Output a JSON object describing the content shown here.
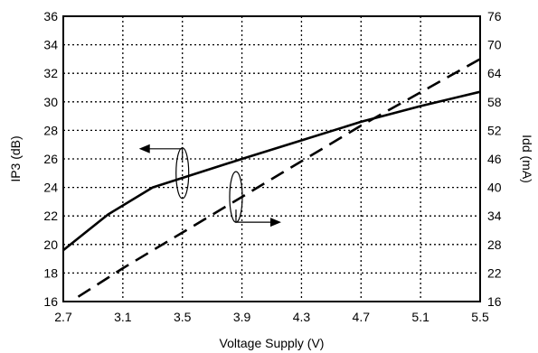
{
  "chart_data": {
    "type": "line",
    "xlabel": "Voltage Supply (V)",
    "ylabel_left": "IP3 (dB)",
    "ylabel_right": "Idd (mA)",
    "xlim": [
      2.7,
      5.5
    ],
    "ylim_left": [
      16,
      36
    ],
    "ylim_right": [
      16,
      76
    ],
    "x_ticks": [
      "2.7",
      "3.1",
      "3.5",
      "3.9",
      "4.3",
      "4.7",
      "5.1",
      "5.5"
    ],
    "y_left_ticks": [
      "16",
      "18",
      "20",
      "22",
      "24",
      "26",
      "28",
      "30",
      "32",
      "34",
      "36"
    ],
    "y_right_ticks": [
      "16",
      "22",
      "28",
      "34",
      "40",
      "46",
      "52",
      "58",
      "64",
      "70",
      "76"
    ],
    "grid": true,
    "series": [
      {
        "axis": "left",
        "style": "solid",
        "x": [
          2.7,
          3.0,
          3.3,
          3.9,
          4.3,
          4.7,
          5.1,
          5.5
        ],
        "y": [
          19.6,
          22.1,
          24.0,
          26.0,
          27.3,
          28.6,
          29.7,
          30.7
        ]
      },
      {
        "axis": "right",
        "style": "dashed",
        "x": [
          2.8,
          3.1,
          3.5,
          3.9,
          4.3,
          4.7,
          5.1,
          5.5
        ],
        "y": [
          17.0,
          23.0,
          30.5,
          38.0,
          45.5,
          53.0,
          60.0,
          67.0
        ]
      }
    ],
    "annotations": [
      {
        "type": "ellipse-arrow",
        "axis": "left",
        "x": 3.5,
        "y": 25.0,
        "arrow": "left"
      },
      {
        "type": "ellipse-arrow",
        "axis": "right",
        "x": 3.86,
        "y": 38.0,
        "arrow": "right"
      }
    ]
  }
}
